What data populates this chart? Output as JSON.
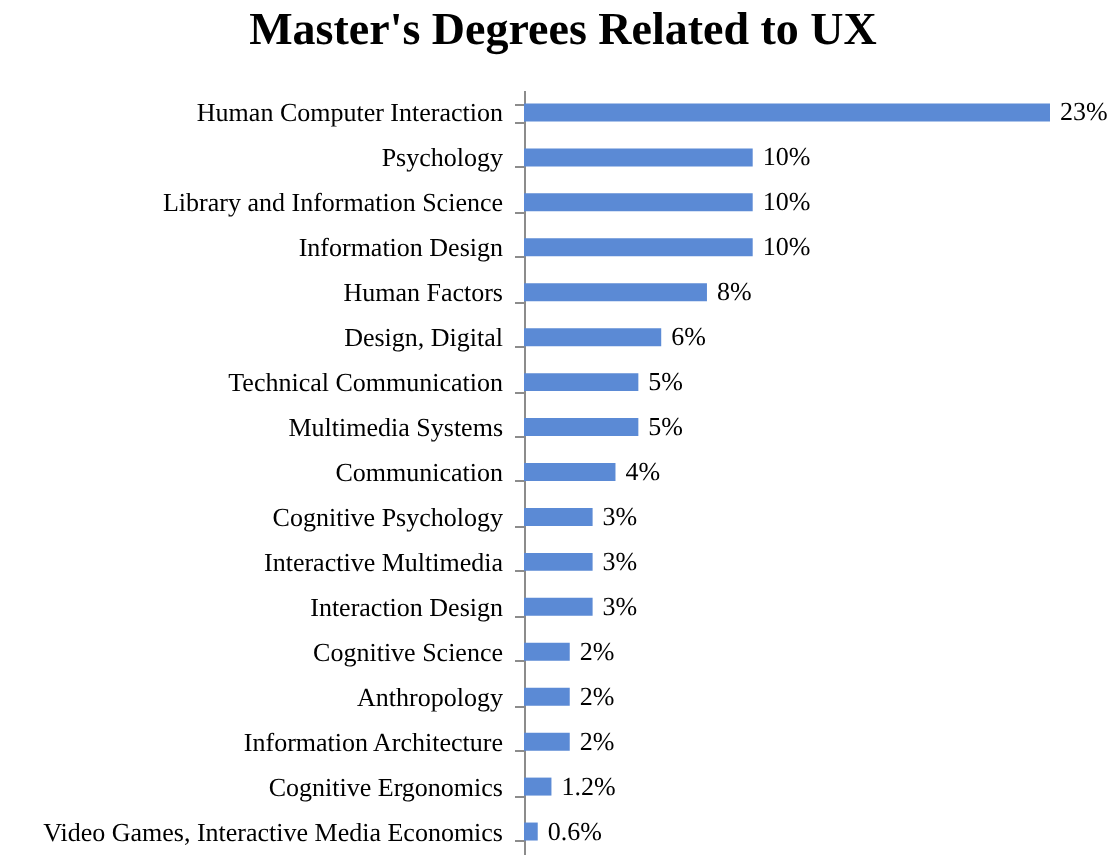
{
  "chart_data": {
    "type": "bar",
    "orientation": "horizontal",
    "title": "Master's Degrees Related to UX",
    "categories": [
      "Human Computer Interaction",
      "Psychology",
      "Library and Information Science",
      "Information Design",
      "Human Factors",
      "Design, Digital",
      "Technical Communication",
      "Multimedia Systems",
      "Communication",
      "Cognitive Psychology",
      "Interactive Multimedia",
      "Interaction Design",
      "Cognitive Science",
      "Anthropology",
      "Information Architecture",
      "Cognitive Ergonomics",
      "Video Games, Interactive Media Economics"
    ],
    "values": [
      23,
      10,
      10,
      10,
      8,
      6,
      5,
      5,
      4,
      3,
      3,
      3,
      2,
      2,
      2,
      1.2,
      0.6
    ],
    "value_labels": [
      "23%",
      "10%",
      "10%",
      "10%",
      "8%",
      "6%",
      "5%",
      "5%",
      "4%",
      "3%",
      "3%",
      "3%",
      "2%",
      "2%",
      "2%",
      "1.2%",
      "0.6%"
    ],
    "color": "#5b8ad5"
  }
}
